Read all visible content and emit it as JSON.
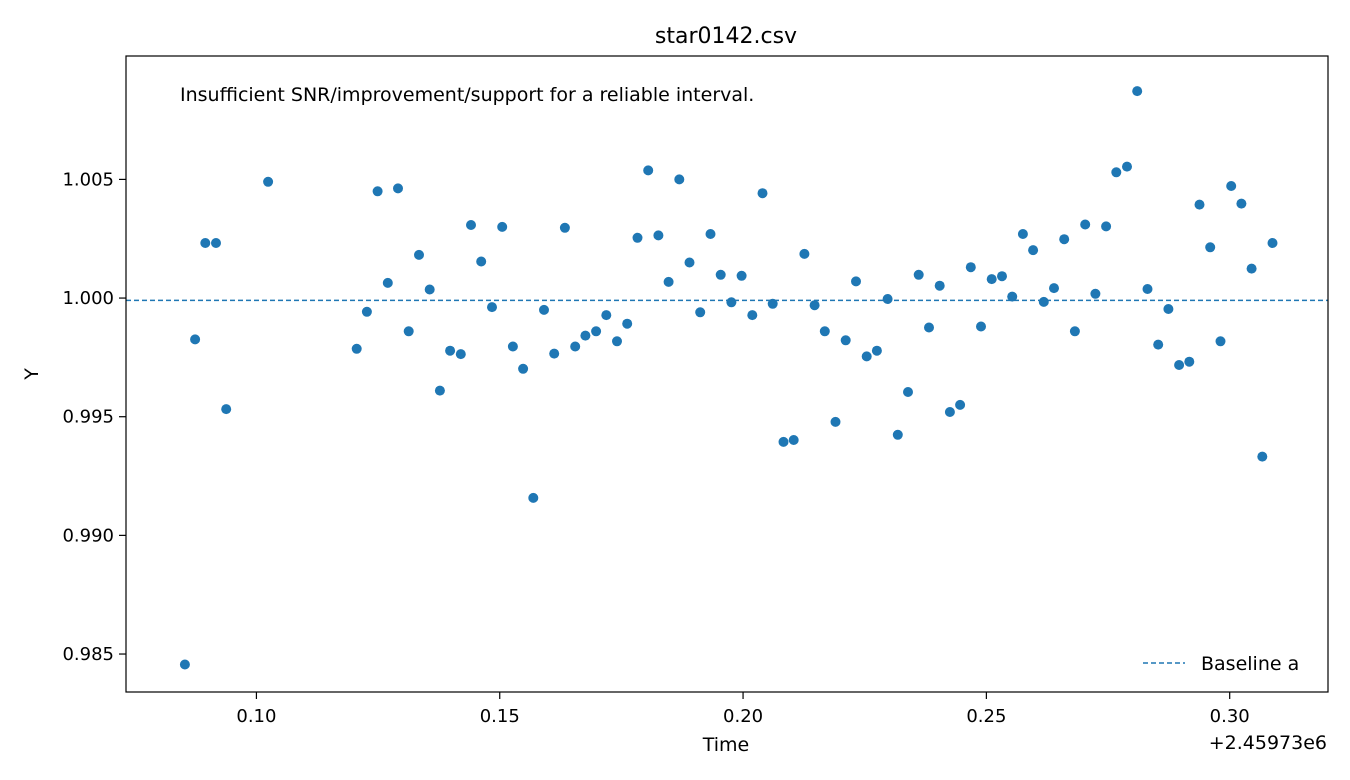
{
  "chart_data": {
    "type": "scatter",
    "title": "star0142.csv",
    "xlabel": "Time",
    "ylabel": "Y",
    "x_offset_label": "+2.45973e6",
    "annotation": "Insufficient SNR/improvement/support for a reliable interval.",
    "xlim": [
      0.0732,
      0.3202
    ],
    "ylim": [
      0.9834,
      1.0102
    ],
    "x_ticks": [
      0.1,
      0.15,
      0.2,
      0.25,
      0.3
    ],
    "x_tick_labels": [
      "0.10",
      "0.15",
      "0.20",
      "0.25",
      "0.30"
    ],
    "y_ticks": [
      0.985,
      0.99,
      0.995,
      1.0,
      1.005
    ],
    "y_tick_labels": [
      "0.985",
      "0.990",
      "0.995",
      "1.000",
      "1.005"
    ],
    "grid": false,
    "legend_position": "bottom-right",
    "point_color": "#1f77b4",
    "baseline": {
      "name": "Baseline a",
      "y": 0.9999,
      "color": "#1f77b4",
      "style": "dashed"
    },
    "points": [
      [
        0.0853,
        0.98456
      ],
      [
        0.0874,
        0.99826
      ],
      [
        0.0895,
        1.00232
      ],
      [
        0.0917,
        1.00232
      ],
      [
        0.0938,
        0.99532
      ],
      [
        0.1024,
        1.0049
      ],
      [
        0.1206,
        0.99786
      ],
      [
        0.1227,
        0.99942
      ],
      [
        0.1249,
        1.0045
      ],
      [
        0.127,
        1.00064
      ],
      [
        0.1291,
        1.00462
      ],
      [
        0.1313,
        0.9986
      ],
      [
        0.1334,
        1.00182
      ],
      [
        0.1356,
        1.00036
      ],
      [
        0.1377,
        0.9961
      ],
      [
        0.1398,
        0.99778
      ],
      [
        0.142,
        0.99764
      ],
      [
        0.1441,
        1.00308
      ],
      [
        0.1462,
        1.00154
      ],
      [
        0.1484,
        0.99962
      ],
      [
        0.1505,
        1.003
      ],
      [
        0.1527,
        0.99796
      ],
      [
        0.1548,
        0.99702
      ],
      [
        0.1569,
        0.99158
      ],
      [
        0.1591,
        0.9995
      ],
      [
        0.1612,
        0.99766
      ],
      [
        0.1634,
        1.00296
      ],
      [
        0.1655,
        0.99796
      ],
      [
        0.1676,
        0.99842
      ],
      [
        0.1698,
        0.9986
      ],
      [
        0.1719,
        0.99928
      ],
      [
        0.1741,
        0.99818
      ],
      [
        0.1762,
        0.99892
      ],
      [
        0.1783,
        1.00254
      ],
      [
        0.1805,
        1.00538
      ],
      [
        0.1826,
        1.00264
      ],
      [
        0.1847,
        1.00068
      ],
      [
        0.1869,
        1.005
      ],
      [
        0.189,
        1.0015
      ],
      [
        0.1912,
        0.9994
      ],
      [
        0.1933,
        1.0027
      ],
      [
        0.1954,
        1.00098
      ],
      [
        0.1976,
        0.99982
      ],
      [
        0.1997,
        1.00094
      ],
      [
        0.2019,
        0.99928
      ],
      [
        0.204,
        1.00442
      ],
      [
        0.2061,
        0.99976
      ],
      [
        0.2083,
        0.99394
      ],
      [
        0.2104,
        0.99402
      ],
      [
        0.2126,
        1.00186
      ],
      [
        0.2147,
        0.9997
      ],
      [
        0.2168,
        0.9986
      ],
      [
        0.219,
        0.99478
      ],
      [
        0.2211,
        0.99822
      ],
      [
        0.2232,
        1.0007
      ],
      [
        0.2254,
        0.99754
      ],
      [
        0.2275,
        0.99778
      ],
      [
        0.2297,
        0.99996
      ],
      [
        0.2318,
        0.99424
      ],
      [
        0.2339,
        0.99604
      ],
      [
        0.2361,
        1.00098
      ],
      [
        0.2382,
        0.99876
      ],
      [
        0.2404,
        1.00052
      ],
      [
        0.2425,
        0.9952
      ],
      [
        0.2446,
        0.9955
      ],
      [
        0.2468,
        1.0013
      ],
      [
        0.2489,
        0.9988
      ],
      [
        0.2511,
        1.0008
      ],
      [
        0.2532,
        1.00092
      ],
      [
        0.2553,
        1.00006
      ],
      [
        0.2575,
        1.0027
      ],
      [
        0.2596,
        1.00202
      ],
      [
        0.2618,
        0.99984
      ],
      [
        0.2639,
        1.00042
      ],
      [
        0.266,
        1.00248
      ],
      [
        0.2682,
        0.9986
      ],
      [
        0.2703,
        1.0031
      ],
      [
        0.2724,
        1.00018
      ],
      [
        0.2746,
        1.00302
      ],
      [
        0.2767,
        1.0053
      ],
      [
        0.2789,
        1.00554
      ],
      [
        0.281,
        1.00872
      ],
      [
        0.2831,
        1.00038
      ],
      [
        0.2853,
        0.99804
      ],
      [
        0.2874,
        0.99954
      ],
      [
        0.2896,
        0.99718
      ],
      [
        0.2917,
        0.99732
      ],
      [
        0.2938,
        1.00394
      ],
      [
        0.296,
        1.00214
      ],
      [
        0.2981,
        0.99818
      ],
      [
        0.3003,
        1.00472
      ],
      [
        0.3024,
        1.00398
      ],
      [
        0.3045,
        1.00124
      ],
      [
        0.3067,
        0.99332
      ],
      [
        0.3088,
        1.00232
      ]
    ]
  }
}
